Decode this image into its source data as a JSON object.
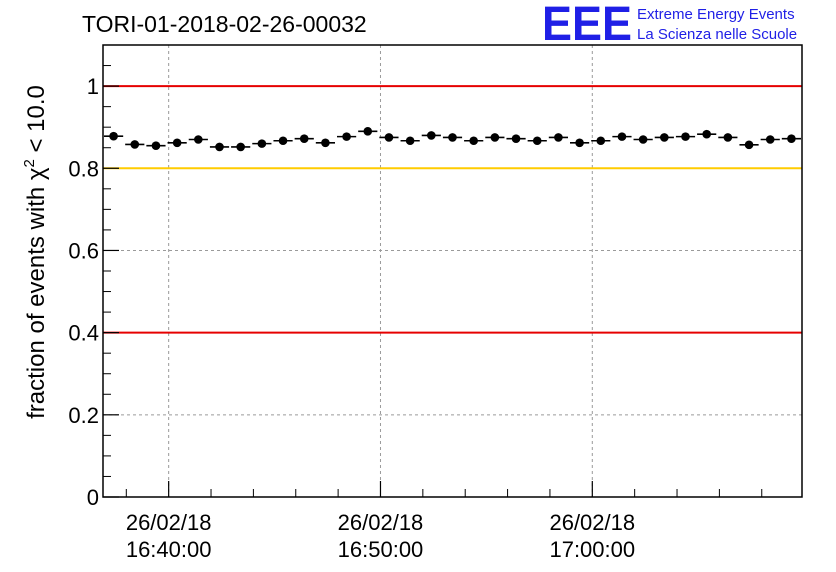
{
  "chart_data": {
    "type": "scatter",
    "title": "TORI-01-2018-02-26-00032",
    "ylabel_prefix": "fraction of events with ",
    "ylabel_chi": "χ",
    "ylabel_exp": "2",
    "ylabel_suffix": " < 10.0",
    "ylim": [
      0,
      1.1
    ],
    "yticks": [
      {
        "value": 0,
        "label": "0"
      },
      {
        "value": 0.2,
        "label": "0.2"
      },
      {
        "value": 0.4,
        "label": "0.4"
      },
      {
        "value": 0.6,
        "label": "0.6"
      },
      {
        "value": 0.8,
        "label": "0.8"
      },
      {
        "value": 1.0,
        "label": "1"
      }
    ],
    "xlim_minutes": [
      36.9,
      69.9
    ],
    "xticks": [
      {
        "minute": 40,
        "date": "26/02/18",
        "time": "16:40:00"
      },
      {
        "minute": 50,
        "date": "26/02/18",
        "time": "16:50:00"
      },
      {
        "minute": 60,
        "date": "26/02/18",
        "time": "17:00:00"
      }
    ],
    "grid": true,
    "reference_lines": [
      {
        "y": 1.0,
        "color": "#e60000"
      },
      {
        "y": 0.8,
        "color": "#ffcc00"
      },
      {
        "y": 0.4,
        "color": "#e60000"
      }
    ],
    "series": [
      {
        "points": [
          0.878,
          0.858,
          0.855,
          0.862,
          0.87,
          0.852,
          0.852,
          0.86,
          0.867,
          0.872,
          0.862,
          0.877,
          0.89,
          0.875,
          0.867,
          0.88,
          0.875,
          0.867,
          0.875,
          0.872,
          0.867,
          0.875,
          0.862,
          0.867,
          0.877,
          0.87,
          0.875,
          0.877,
          0.883,
          0.875,
          0.857,
          0.87,
          0.872
        ]
      }
    ]
  },
  "logo": {
    "text": "EEE",
    "line1": "Extreme Energy Events",
    "line2": "La Scienza nelle Scuole"
  }
}
